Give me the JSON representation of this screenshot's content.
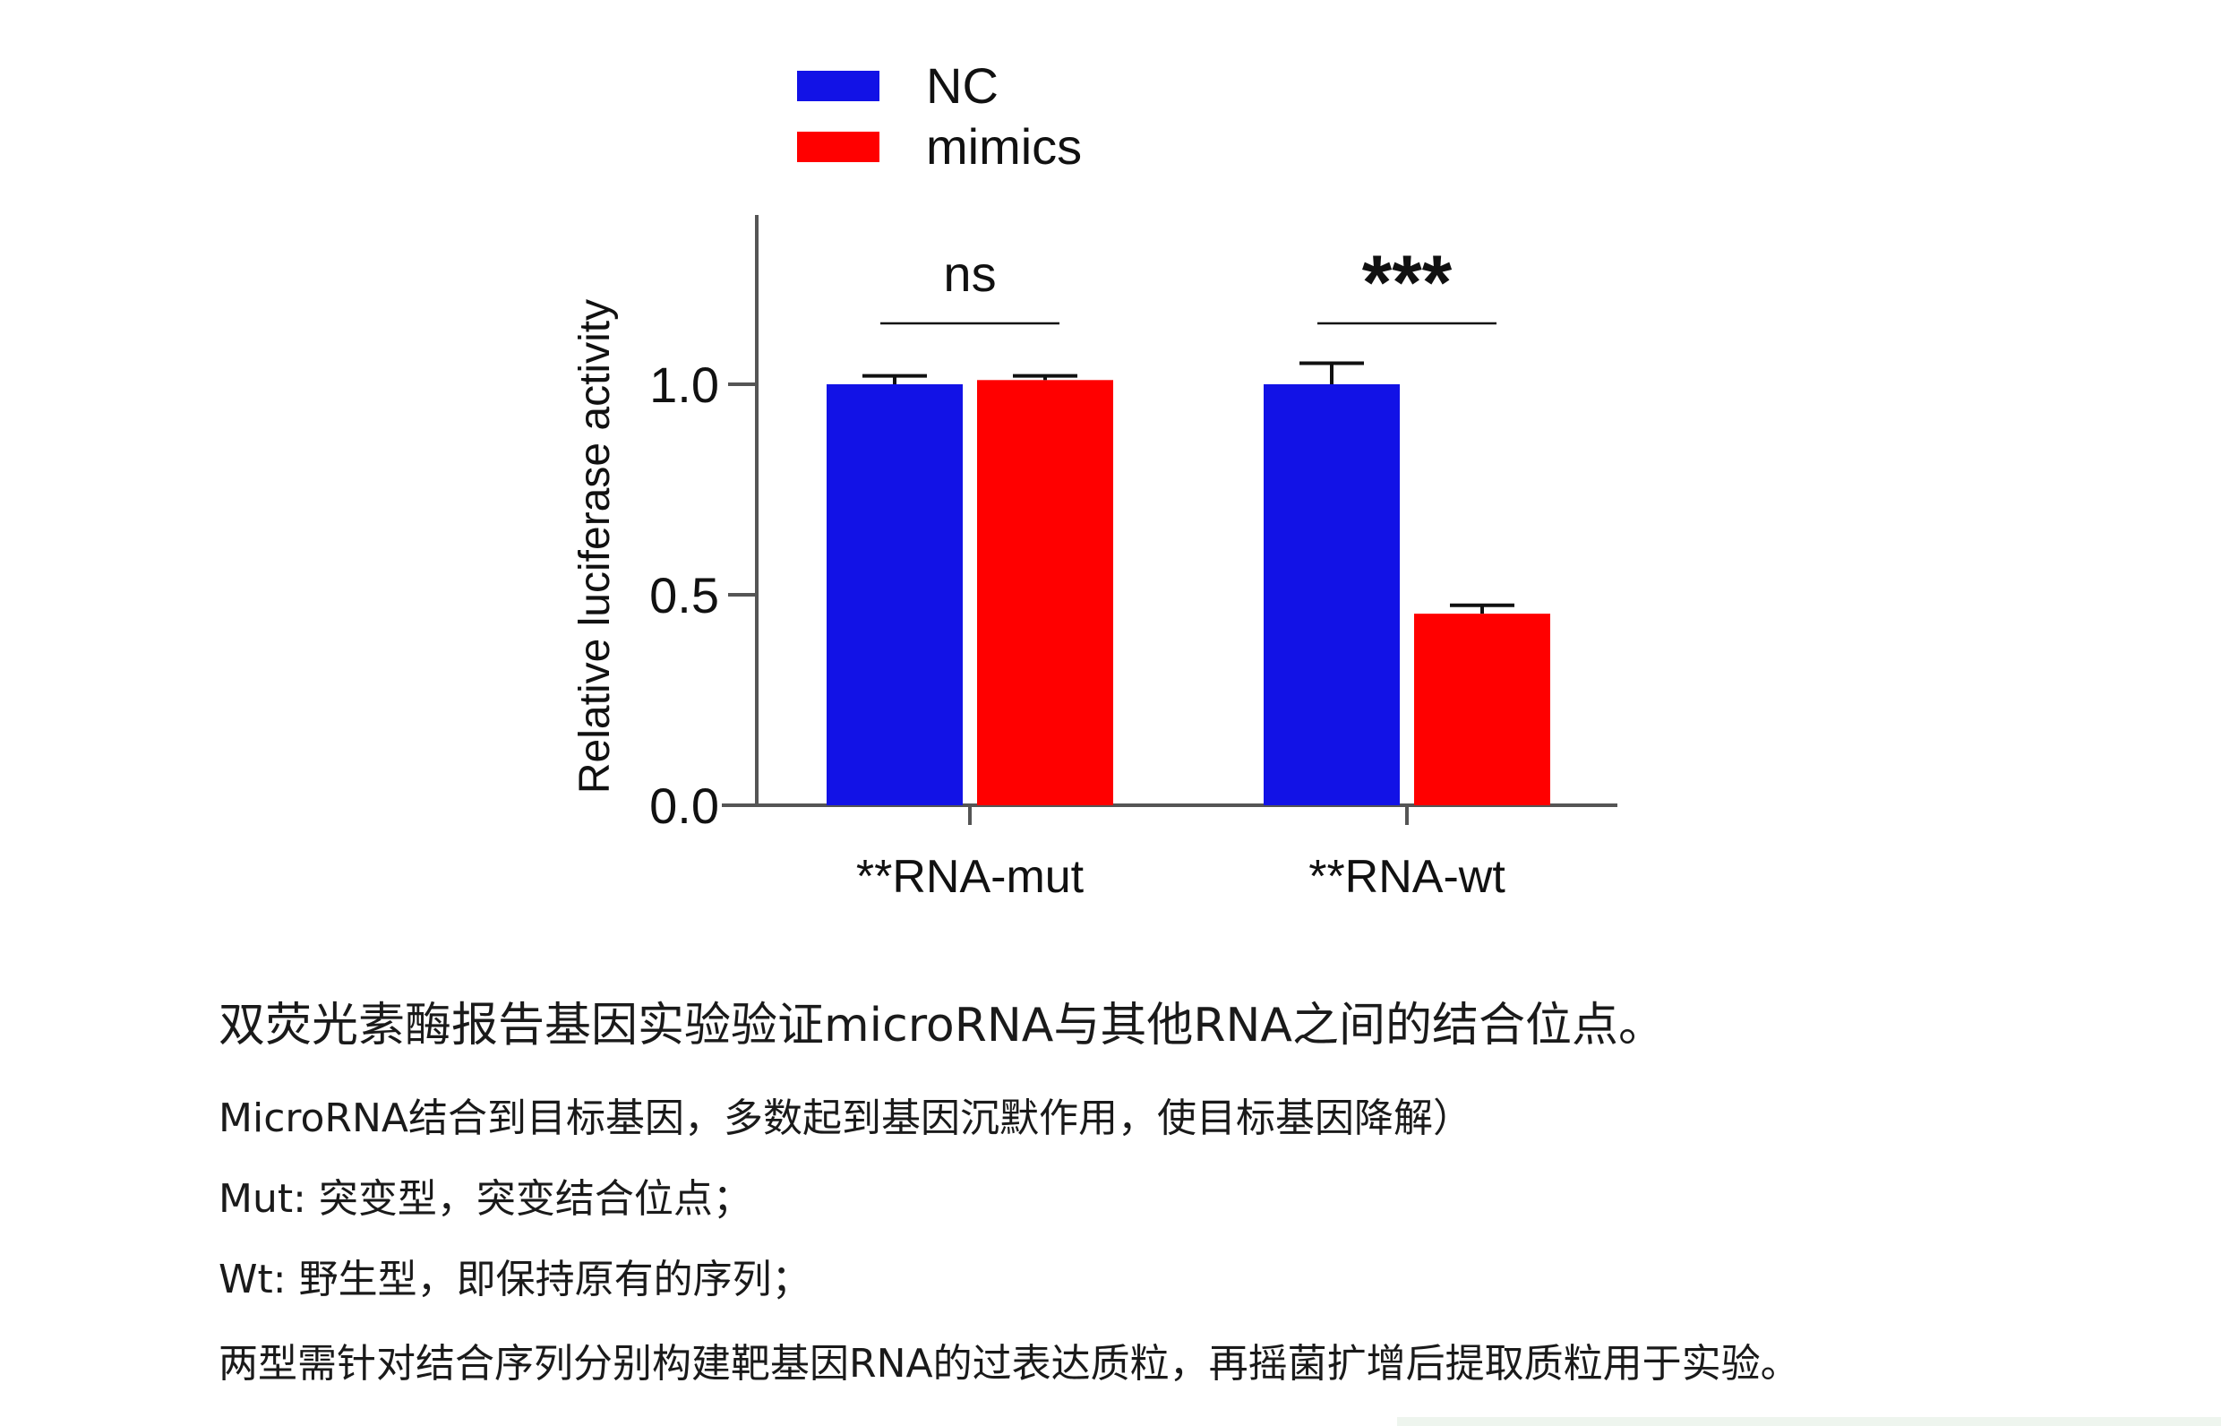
{
  "chart_data": {
    "type": "bar",
    "ylabel": "Relative luciferase activity",
    "ylim": [
      0,
      1.4
    ],
    "yticks": [
      "0.0",
      "0.5",
      "1.0"
    ],
    "ytick_values": [
      0,
      0.5,
      1.0
    ],
    "grid": false,
    "legend_position": "top",
    "categories": [
      "**RNA-mut",
      "**RNA-wt"
    ],
    "series": [
      {
        "name": "NC",
        "color": "#1212e6",
        "values": [
          1.0,
          1.0
        ],
        "errors": [
          0.02,
          0.05
        ]
      },
      {
        "name": "mimics",
        "color": "#ff0000",
        "values": [
          1.01,
          0.455
        ],
        "errors": [
          0.01,
          0.02
        ]
      }
    ],
    "significance": [
      "ns",
      "***"
    ]
  },
  "caption": {
    "title": "双荧光素酶报告基因实验验证microRNA与其他RNA之间的结合位点。",
    "lines": [
      "MicroRNA结合到目标基因，多数起到基因沉默作用，使目标基因降解）",
      "Mut: 突变型，突变结合位点；",
      "Wt: 野生型，即保持原有的序列；",
      "两型需针对结合序列分别构建靶基因RNA的过表达质粒，再摇菌扩增后提取质粒用于实验。"
    ]
  }
}
